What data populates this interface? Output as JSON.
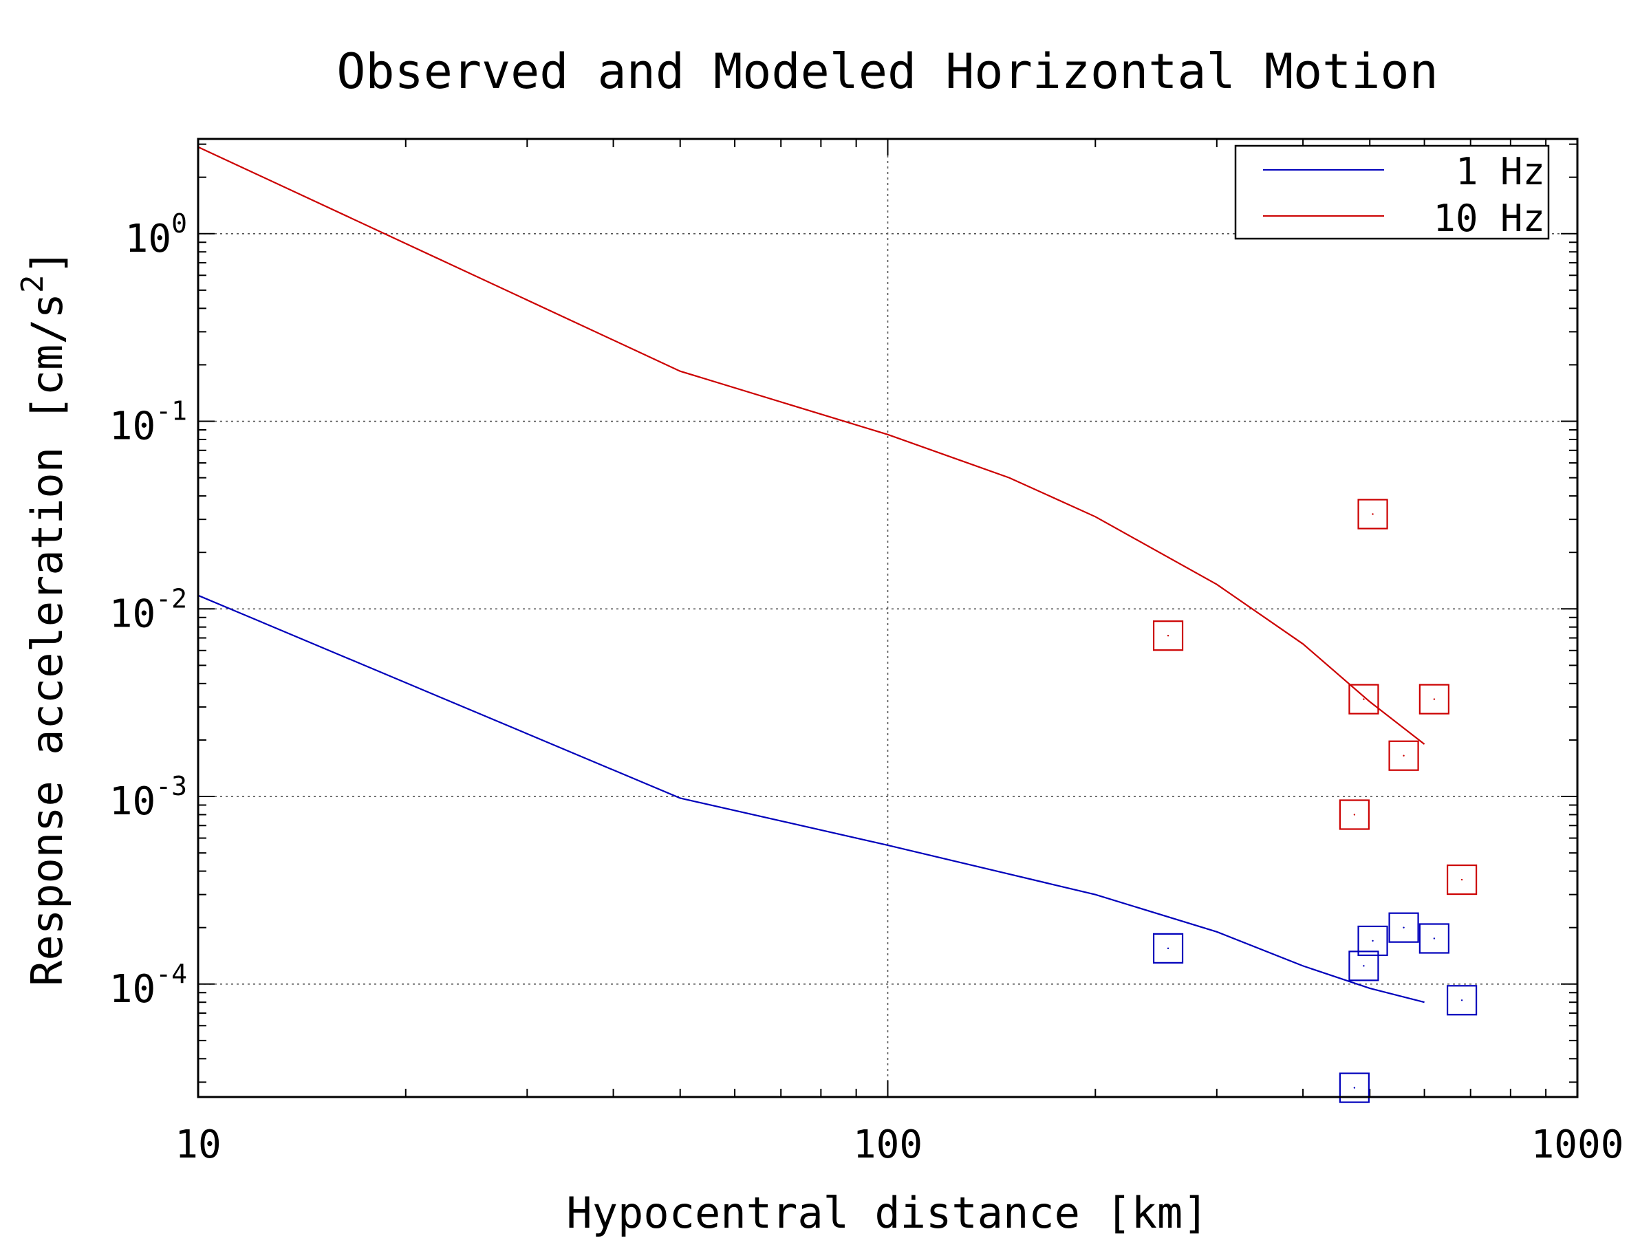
{
  "chart_data": {
    "type": "line",
    "title": "Observed and Modeled Horizontal Motion",
    "xlabel": "Hypocentral distance [km]",
    "ylabel_main": "Response acceleration [cm/s",
    "ylabel_sup": "2",
    "ylabel_end": "]",
    "xscale": "log",
    "yscale": "log",
    "xlim": [
      10,
      1000
    ],
    "ylim": [
      2.5e-05,
      3.2
    ],
    "grid": true,
    "legend_position": "top-right",
    "x_ticks": [
      {
        "value": 10,
        "label": "10"
      },
      {
        "value": 100,
        "label": "100"
      },
      {
        "value": 1000,
        "label": "1000"
      }
    ],
    "y_ticks": [
      {
        "value": 1,
        "base": "10",
        "exp": "0"
      },
      {
        "value": 0.1,
        "base": "10",
        "exp": "-1"
      },
      {
        "value": 0.01,
        "base": "10",
        "exp": "-2"
      },
      {
        "value": 0.001,
        "base": "10",
        "exp": "-3"
      },
      {
        "value": 0.0001,
        "base": "10",
        "exp": "-4"
      }
    ],
    "series": [
      {
        "name": "1 Hz",
        "color": "#0000bb",
        "line": [
          [
            10,
            0.0118
          ],
          [
            50,
            0.00098
          ],
          [
            100,
            0.00055
          ],
          [
            200,
            0.0003
          ],
          [
            300,
            0.00019
          ],
          [
            400,
            0.000125
          ],
          [
            500,
            9.5e-05
          ],
          [
            600,
            8e-05
          ]
        ],
        "observed": [
          [
            255,
            0.000155
          ],
          [
            475,
            2.8e-05
          ],
          [
            490,
            0.000125
          ],
          [
            505,
            0.00017
          ],
          [
            560,
            0.0002
          ],
          [
            620,
            0.000175
          ],
          [
            680,
            8.2e-05
          ]
        ]
      },
      {
        "name": "10 Hz",
        "color": "#cc0000",
        "line": [
          [
            10,
            2.9
          ],
          [
            50,
            0.185
          ],
          [
            100,
            0.085
          ],
          [
            150,
            0.05
          ],
          [
            200,
            0.031
          ],
          [
            300,
            0.0135
          ],
          [
            400,
            0.0065
          ],
          [
            500,
            0.0032
          ],
          [
            600,
            0.0019
          ]
        ],
        "observed": [
          [
            255,
            0.0072
          ],
          [
            475,
            0.0008
          ],
          [
            490,
            0.0033
          ],
          [
            505,
            0.032
          ],
          [
            560,
            0.00165
          ],
          [
            620,
            0.0033
          ],
          [
            680,
            0.00036
          ]
        ]
      }
    ]
  },
  "legend": {
    "items": [
      {
        "label": "  1 Hz",
        "color": "#0000bb"
      },
      {
        "label": " 10 Hz",
        "color": "#cc0000"
      }
    ]
  }
}
